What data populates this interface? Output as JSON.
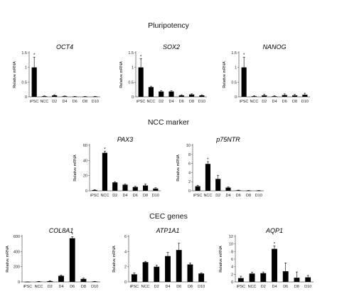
{
  "sections": {
    "pluripotency": "Pluripotency",
    "ncc": "NCC marker",
    "cec": "CEC genes"
  },
  "chart_data": [
    {
      "type": "bar",
      "title": "OCT4",
      "ylabel": "Relative mRNA",
      "categories": [
        "iPSC",
        "NCC",
        "D2",
        "D4",
        "D6",
        "D8",
        "D10"
      ],
      "values": [
        1.0,
        0.02,
        0.05,
        0.02,
        0.01,
        0.01,
        0.01
      ],
      "errors": [
        0.35,
        0.01,
        0.02,
        0.01,
        0.005,
        0.005,
        0.005
      ],
      "ylim": [
        0,
        1.5
      ],
      "yticks": [
        0,
        0.5,
        1,
        1.5
      ],
      "ytick_labels": [
        "0",
        "0.5",
        "1",
        "1.5"
      ],
      "significant": [
        true,
        false,
        false,
        false,
        false,
        false,
        false
      ],
      "color": "#000000"
    },
    {
      "type": "bar",
      "title": "SOX2",
      "ylabel": "Relative mRNA",
      "categories": [
        "iPSC",
        "NCC",
        "D2",
        "D4",
        "D6",
        "D8",
        "D10"
      ],
      "values": [
        1.0,
        0.33,
        0.18,
        0.18,
        0.05,
        0.08,
        0.05
      ],
      "errors": [
        0.3,
        0.03,
        0.03,
        0.03,
        0.02,
        0.02,
        0.02
      ],
      "ylim": [
        0,
        1.5
      ],
      "yticks": [
        0,
        0.5,
        1,
        1.5
      ],
      "ytick_labels": [
        "0",
        "0.5",
        "1",
        "1.5"
      ],
      "significant": [
        true,
        false,
        false,
        false,
        false,
        false,
        false
      ],
      "color": "#000000"
    },
    {
      "type": "bar",
      "title": "NANOG",
      "ylabel": "Relative mRNA",
      "categories": [
        "iPSC",
        "NCC",
        "D2",
        "D4",
        "D6",
        "D8",
        "D10"
      ],
      "values": [
        1.0,
        0.02,
        0.05,
        0.02,
        0.06,
        0.05,
        0.07
      ],
      "errors": [
        0.35,
        0.02,
        0.04,
        0.02,
        0.04,
        0.03,
        0.05
      ],
      "ylim": [
        0,
        1.5
      ],
      "yticks": [
        0,
        0.5,
        1,
        1.5
      ],
      "ytick_labels": [
        "0",
        "0.5",
        "1",
        "1.5"
      ],
      "significant": [
        true,
        false,
        false,
        false,
        false,
        false,
        false
      ],
      "color": "#000000"
    },
    {
      "type": "bar",
      "title": "PAX3",
      "ylabel": "Relative mRNA",
      "categories": [
        "iPSC",
        "NCC",
        "D2",
        "D4",
        "D6",
        "D8",
        "D10"
      ],
      "values": [
        1,
        50,
        11,
        8,
        5,
        7,
        3
      ],
      "errors": [
        0.5,
        2,
        1,
        1,
        1,
        2,
        1
      ],
      "ylim": [
        0,
        60
      ],
      "yticks": [
        0,
        20,
        40,
        60
      ],
      "ytick_labels": [
        "0",
        "20",
        "40",
        "60"
      ],
      "significant": [
        false,
        true,
        false,
        false,
        false,
        false,
        false
      ],
      "color": "#000000"
    },
    {
      "type": "bar",
      "title": "p75NTR",
      "ylabel": "Relative mRNA",
      "categories": [
        "iPSC",
        "NCC",
        "D2",
        "D4",
        "D6",
        "D8",
        "D10"
      ],
      "values": [
        1.0,
        5.9,
        2.6,
        0.7,
        0.1,
        0.05,
        0.05
      ],
      "errors": [
        0.2,
        0.5,
        0.8,
        0.2,
        0.05,
        0.03,
        0.03
      ],
      "ylim": [
        0,
        10
      ],
      "yticks": [
        0,
        2,
        4,
        6,
        8,
        10
      ],
      "ytick_labels": [
        "0",
        "2",
        "4",
        "6",
        "8",
        "10"
      ],
      "significant": [
        false,
        true,
        false,
        false,
        false,
        false,
        false
      ],
      "color": "#000000"
    },
    {
      "type": "bar",
      "title": "COL8A1",
      "ylabel": "Relative mRNA",
      "categories": [
        "iPSC",
        "NCC",
        "D2",
        "D4",
        "D6",
        "D8",
        "D10"
      ],
      "values": [
        1,
        5,
        10,
        80,
        575,
        40,
        5
      ],
      "errors": [
        0.5,
        2,
        5,
        10,
        20,
        10,
        2
      ],
      "ylim": [
        0,
        600
      ],
      "yticks": [
        0,
        200,
        400,
        600
      ],
      "ytick_labels": [
        "0",
        "200",
        "400",
        "600"
      ],
      "significant": [
        false,
        false,
        false,
        false,
        true,
        false,
        false
      ],
      "color": "#000000"
    },
    {
      "type": "bar",
      "title": "ATP1A1",
      "ylabel": "Relative mRNA",
      "categories": [
        "iPSC",
        "NCC",
        "D2",
        "D4",
        "D6",
        "D8",
        "D10"
      ],
      "values": [
        1.0,
        2.6,
        2.0,
        3.4,
        4.2,
        2.3,
        1.1
      ],
      "errors": [
        0.2,
        0.1,
        0.2,
        0.5,
        0.9,
        0.2,
        0.1
      ],
      "ylim": [
        0,
        6
      ],
      "yticks": [
        0,
        2,
        4,
        6
      ],
      "ytick_labels": [
        "0",
        "2",
        "4",
        "6"
      ],
      "significant": [
        false,
        false,
        false,
        false,
        false,
        false,
        false
      ],
      "color": "#000000"
    },
    {
      "type": "bar",
      "title": "AQP1",
      "ylabel": "Relative mRNA",
      "categories": [
        "iPSC",
        "NCC",
        "D2",
        "D4",
        "D6",
        "D8",
        "D10"
      ],
      "values": [
        1.0,
        2.2,
        2.3,
        8.7,
        2.8,
        1.1,
        1.2
      ],
      "errors": [
        0.5,
        0.3,
        0.3,
        0.8,
        2.2,
        1.5,
        0.5
      ],
      "ylim": [
        0,
        12
      ],
      "yticks": [
        0,
        2,
        4,
        6,
        8,
        10,
        12
      ],
      "ytick_labels": [
        "0",
        "2",
        "4",
        "6",
        "8",
        "10",
        "12"
      ],
      "significant": [
        false,
        false,
        false,
        true,
        false,
        false,
        false
      ],
      "color": "#000000"
    }
  ]
}
